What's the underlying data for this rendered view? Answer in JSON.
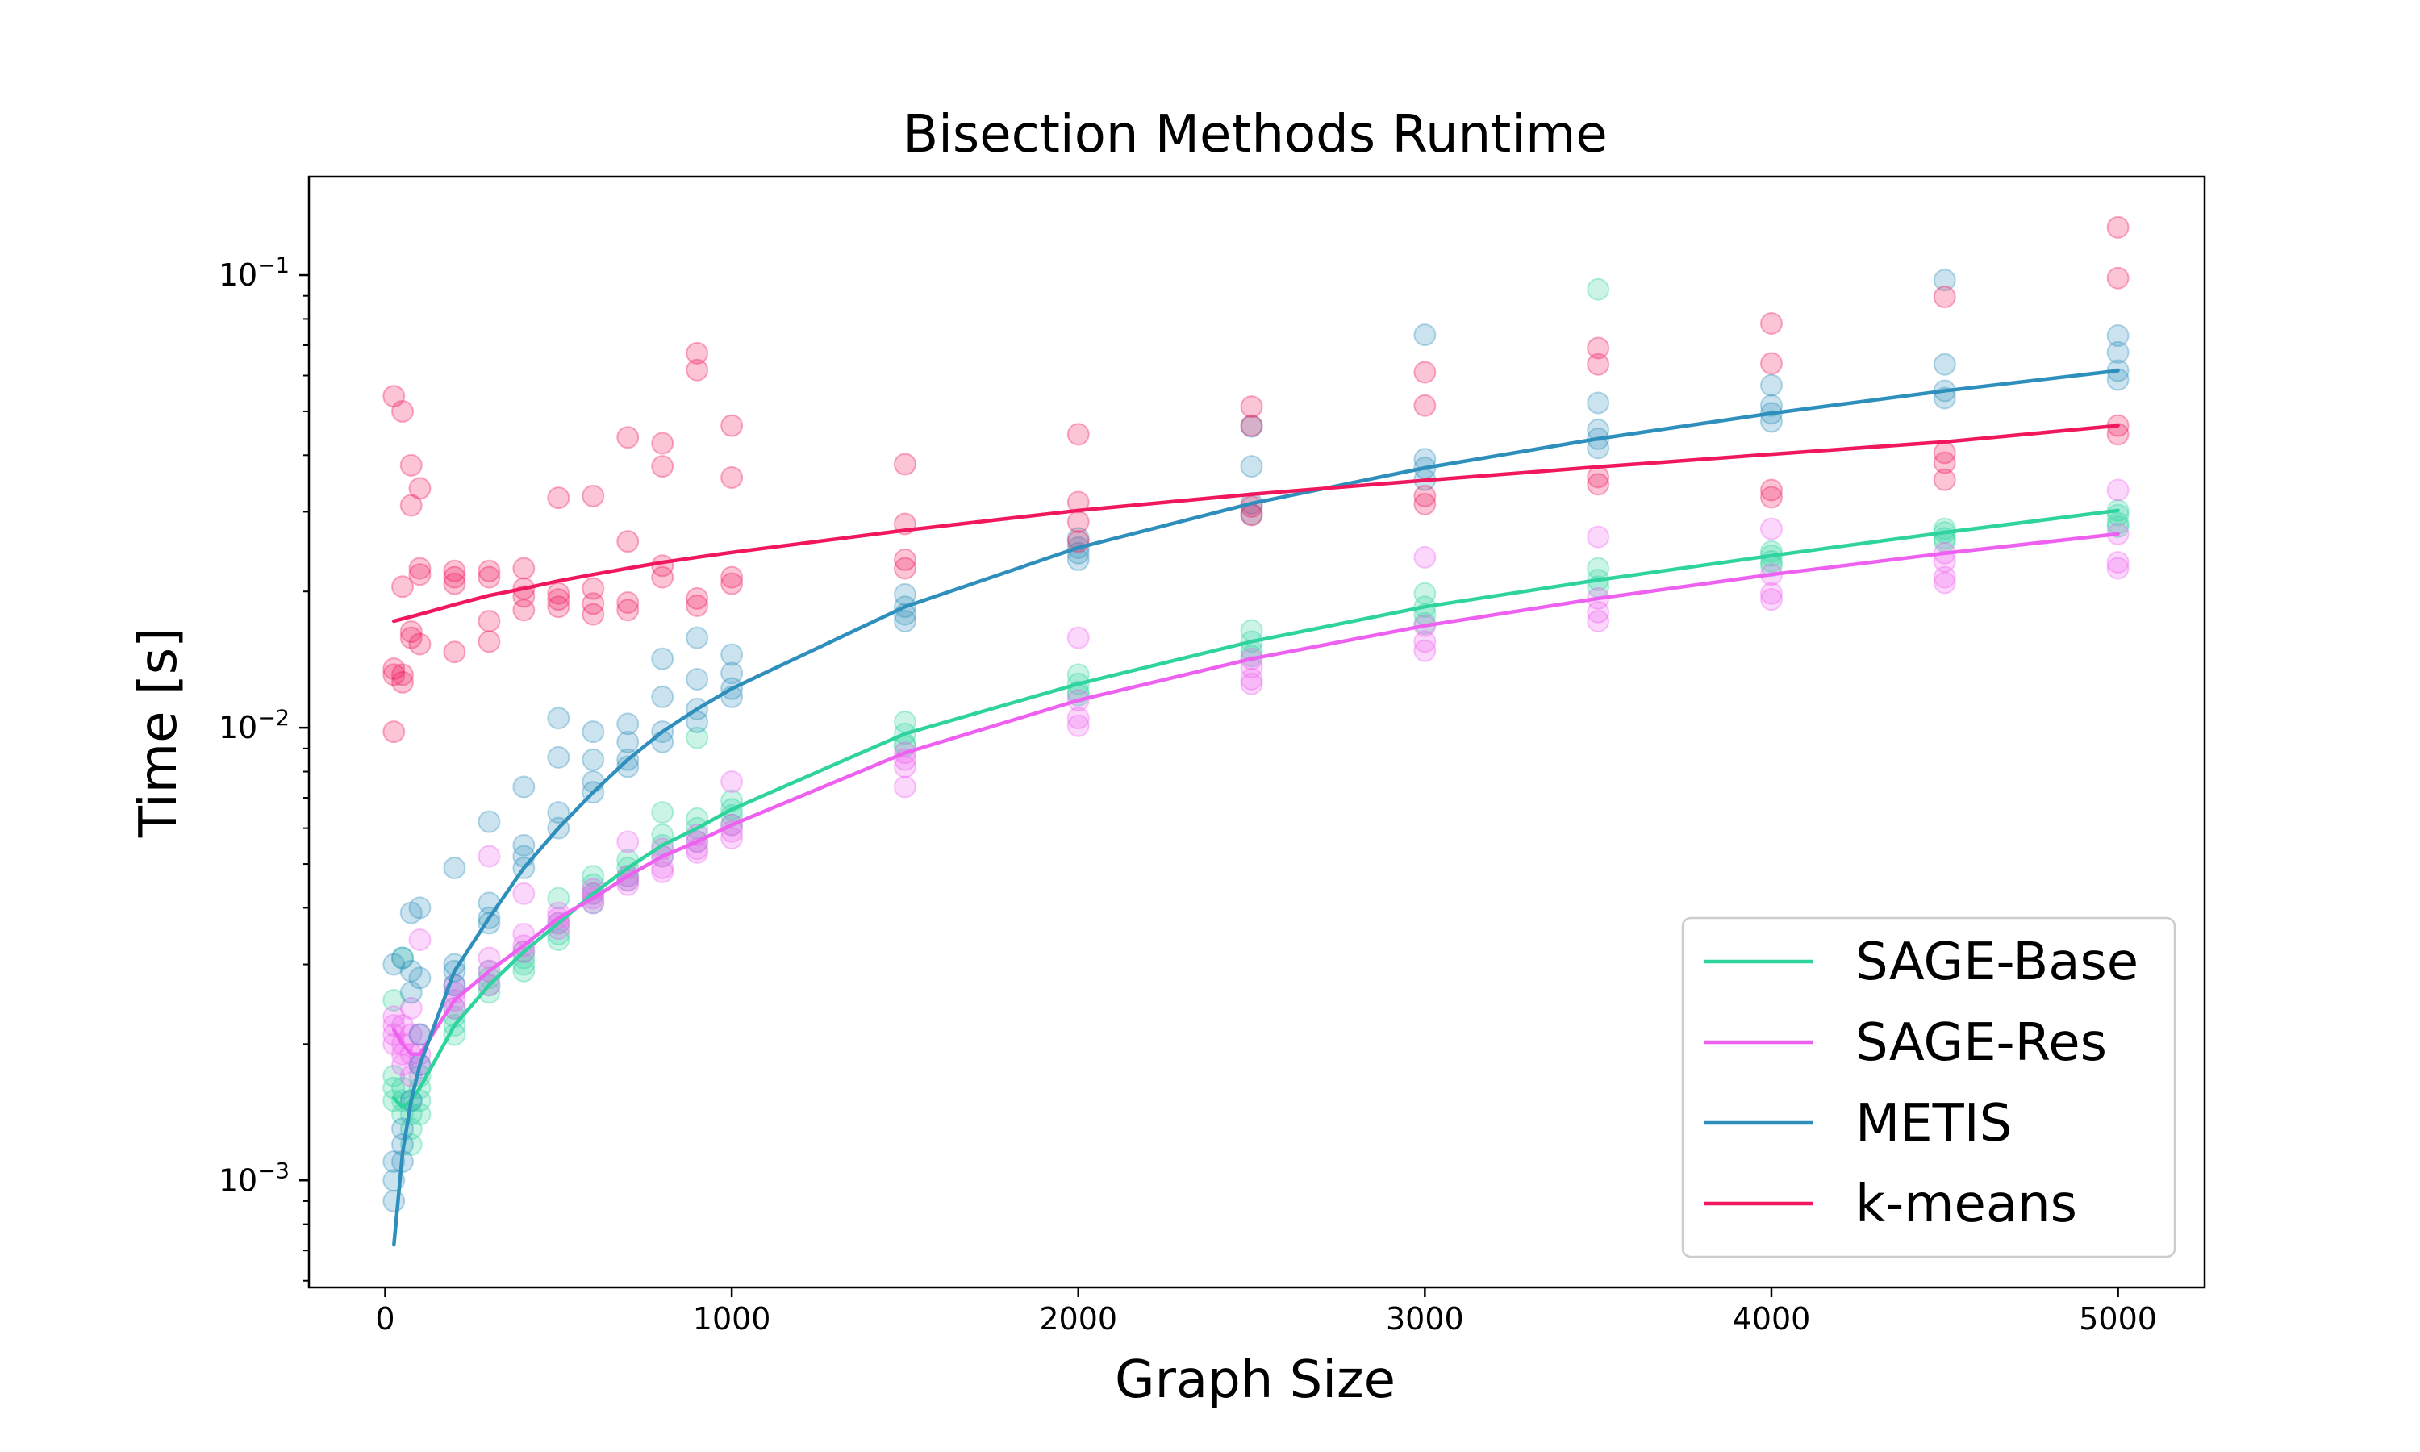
{
  "chart_data": {
    "type": "scatter",
    "title": "Bisection Methods Runtime",
    "xlabel": "Graph Size",
    "ylabel": "Time [s]",
    "xlim": [
      -220,
      5250
    ],
    "ylim": [
      0.00058,
      0.165
    ],
    "yscale": "log",
    "xticks": [
      0,
      1000,
      2000,
      3000,
      4000,
      5000
    ],
    "xtick_labels": [
      "0",
      "1000",
      "2000",
      "3000",
      "4000",
      "5000"
    ],
    "yticks": [
      0.001,
      0.01,
      0.1
    ],
    "ytick_labels": [
      {
        "base": "10",
        "exp": "−3"
      },
      {
        "base": "10",
        "exp": "−2"
      },
      {
        "base": "10",
        "exp": "−1"
      }
    ],
    "legend_position": "lower-right",
    "grid": false,
    "x_sizes": [
      25,
      50,
      75,
      100,
      200,
      300,
      400,
      500,
      600,
      700,
      800,
      900,
      1000,
      1500,
      2000,
      2500,
      3000,
      3500,
      4000,
      4500,
      5000
    ],
    "series": [
      {
        "name": "SAGE-Base",
        "color": "#2ed39e",
        "trend": [
          0.00152,
          0.00145,
          0.0015,
          0.0016,
          0.0022,
          0.0027,
          0.0032,
          0.0037,
          0.0043,
          0.0049,
          0.0055,
          0.006,
          0.0066,
          0.0097,
          0.0125,
          0.0155,
          0.0185,
          0.0212,
          0.024,
          0.027,
          0.0302
        ],
        "points": [
          [
            0.0016,
            0.0015,
            0.0025,
            0.0017
          ],
          [
            0.0015,
            0.0014,
            0.0016,
            0.0031
          ],
          [
            0.0013,
            0.0015,
            0.0012,
            0.0014
          ],
          [
            0.0015,
            0.0017,
            0.0014,
            0.0016
          ],
          [
            0.0022,
            0.0021,
            0.0023,
            0.0024
          ],
          [
            0.0027,
            0.0026,
            0.0028,
            0.0029
          ],
          [
            0.0032,
            0.003,
            0.0031,
            0.0029
          ],
          [
            0.0037,
            0.0035,
            0.0034,
            0.0042
          ],
          [
            0.0043,
            0.0045,
            0.0047,
            0.0041
          ],
          [
            0.0049,
            0.0047,
            0.0046,
            0.0051
          ],
          [
            0.0055,
            0.0058,
            0.0065,
            0.0052
          ],
          [
            0.006,
            0.0056,
            0.0095,
            0.0063
          ],
          [
            0.0066,
            0.0061,
            0.0064,
            0.0069
          ],
          [
            0.0097,
            0.0103,
            0.0092,
            0.0091
          ],
          [
            0.0125,
            0.012,
            0.0118,
            0.0131
          ],
          [
            0.0155,
            0.0164,
            0.0148,
            0.0144
          ],
          [
            0.0185,
            0.0178,
            0.0198,
            0.017
          ],
          [
            0.0212,
            0.0205,
            0.093,
            0.0225
          ],
          [
            0.024,
            0.0233,
            0.0245,
            0.0228
          ],
          [
            0.027,
            0.0262,
            0.0275,
            0.0258
          ],
          [
            0.0302,
            0.0283,
            0.0278,
            0.0295
          ]
        ]
      },
      {
        "name": "SAGE-Res",
        "color": "#ee60f0",
        "trend": [
          0.00215,
          0.002,
          0.0019,
          0.0019,
          0.0025,
          0.0029,
          0.0033,
          0.0038,
          0.0042,
          0.0047,
          0.0052,
          0.0056,
          0.0061,
          0.0088,
          0.0115,
          0.0142,
          0.0168,
          0.0193,
          0.0218,
          0.0243,
          0.0268
        ],
        "points": [
          [
            0.0022,
            0.0021,
            0.0023,
            0.002
          ],
          [
            0.002,
            0.0018,
            0.0022,
            0.0019
          ],
          [
            0.0019,
            0.0021,
            0.0017,
            0.0024
          ],
          [
            0.0019,
            0.0034,
            0.0018,
            0.0021
          ],
          [
            0.0025,
            0.0024,
            0.0026,
            0.0027
          ],
          [
            0.0029,
            0.0027,
            0.0052,
            0.0031
          ],
          [
            0.0033,
            0.0035,
            0.0043,
            0.0032
          ],
          [
            0.0038,
            0.0037,
            0.0039,
            0.0036
          ],
          [
            0.0042,
            0.0041,
            0.0043,
            0.0044
          ],
          [
            0.0047,
            0.0045,
            0.0056,
            0.0046
          ],
          [
            0.0052,
            0.0049,
            0.0054,
            0.0048
          ],
          [
            0.0056,
            0.0054,
            0.0058,
            0.0053
          ],
          [
            0.0061,
            0.0059,
            0.0057,
            0.0076
          ],
          [
            0.0088,
            0.0085,
            0.0082,
            0.0074
          ],
          [
            0.0115,
            0.0105,
            0.0158,
            0.0101
          ],
          [
            0.0142,
            0.0136,
            0.0128,
            0.0125
          ],
          [
            0.0168,
            0.0155,
            0.0238,
            0.0148
          ],
          [
            0.0193,
            0.018,
            0.0172,
            0.0264
          ],
          [
            0.0218,
            0.0198,
            0.0192,
            0.0275
          ],
          [
            0.0243,
            0.0215,
            0.0209,
            0.0233
          ],
          [
            0.0268,
            0.0232,
            0.0225,
            0.0335
          ]
        ]
      },
      {
        "name": "METIS",
        "color": "#2e8fbc",
        "trend": [
          0.00072,
          0.00115,
          0.0015,
          0.0018,
          0.0029,
          0.0038,
          0.0049,
          0.006,
          0.0072,
          0.0085,
          0.0098,
          0.011,
          0.0122,
          0.0185,
          0.025,
          0.0313,
          0.0375,
          0.0435,
          0.0495,
          0.0555,
          0.0615
        ],
        "points": [
          [
            0.0009,
            0.001,
            0.0011,
            0.003
          ],
          [
            0.0011,
            0.0012,
            0.0031,
            0.0013
          ],
          [
            0.0039,
            0.0026,
            0.0015,
            0.0029
          ],
          [
            0.004,
            0.0028,
            0.0018,
            0.0021
          ],
          [
            0.0029,
            0.0027,
            0.0049,
            0.003
          ],
          [
            0.0038,
            0.0062,
            0.0041,
            0.0037
          ],
          [
            0.0049,
            0.0074,
            0.0055,
            0.0052
          ],
          [
            0.006,
            0.0105,
            0.0086,
            0.0065
          ],
          [
            0.0072,
            0.0098,
            0.0085,
            0.0076
          ],
          [
            0.0085,
            0.0102,
            0.0093,
            0.0082
          ],
          [
            0.0098,
            0.0117,
            0.0142,
            0.0093
          ],
          [
            0.011,
            0.0128,
            0.0158,
            0.0103
          ],
          [
            0.0122,
            0.0145,
            0.0117,
            0.0132
          ],
          [
            0.0185,
            0.0172,
            0.0197,
            0.0178
          ],
          [
            0.025,
            0.0235,
            0.0262,
            0.0243
          ],
          [
            0.0313,
            0.0378,
            0.0296,
            0.0463
          ],
          [
            0.0375,
            0.0738,
            0.0353,
            0.0392
          ],
          [
            0.0435,
            0.0522,
            0.0415,
            0.0455
          ],
          [
            0.0495,
            0.0571,
            0.0475,
            0.0515
          ],
          [
            0.0555,
            0.0635,
            0.0535,
            0.0975
          ],
          [
            0.0615,
            0.0735,
            0.0588,
            0.0675
          ]
        ]
      },
      {
        "name": "k-means",
        "color": "#f0175c",
        "trend": [
          0.0172,
          0.0174,
          0.0176,
          0.0178,
          0.0187,
          0.0196,
          0.0203,
          0.0211,
          0.0218,
          0.0225,
          0.0232,
          0.0238,
          0.0244,
          0.0273,
          0.0302,
          0.0328,
          0.0352,
          0.0377,
          0.0402,
          0.0428,
          0.0465
        ],
        "points": [
          [
            0.0131,
            0.0135,
            0.0098,
            0.054
          ],
          [
            0.0126,
            0.0131,
            0.0205,
            0.05
          ],
          [
            0.0163,
            0.0158,
            0.038,
            0.031
          ],
          [
            0.0225,
            0.0218,
            0.0338,
            0.0153
          ],
          [
            0.0208,
            0.0215,
            0.0147,
            0.0222
          ],
          [
            0.0222,
            0.0215,
            0.0155,
            0.0172
          ],
          [
            0.0195,
            0.0203,
            0.0182,
            0.0225
          ],
          [
            0.0185,
            0.0192,
            0.0198,
            0.0322
          ],
          [
            0.0178,
            0.0188,
            0.0203,
            0.0325
          ],
          [
            0.0182,
            0.0189,
            0.0258,
            0.0438
          ],
          [
            0.0215,
            0.0228,
            0.0378,
            0.0425
          ],
          [
            0.0186,
            0.0193,
            0.0617,
            0.0672
          ],
          [
            0.0208,
            0.0215,
            0.0357,
            0.0465
          ],
          [
            0.0225,
            0.0235,
            0.0282,
            0.0382
          ],
          [
            0.0258,
            0.0285,
            0.0315,
            0.0445
          ],
          [
            0.0295,
            0.0308,
            0.0465,
            0.0512
          ],
          [
            0.0312,
            0.0325,
            0.0515,
            0.061
          ],
          [
            0.0345,
            0.0358,
            0.0635,
            0.069
          ],
          [
            0.0323,
            0.0335,
            0.0638,
            0.0782
          ],
          [
            0.0353,
            0.0385,
            0.0405,
            0.0895
          ],
          [
            0.0445,
            0.0465,
            0.0985,
            0.1275
          ]
        ]
      }
    ]
  }
}
